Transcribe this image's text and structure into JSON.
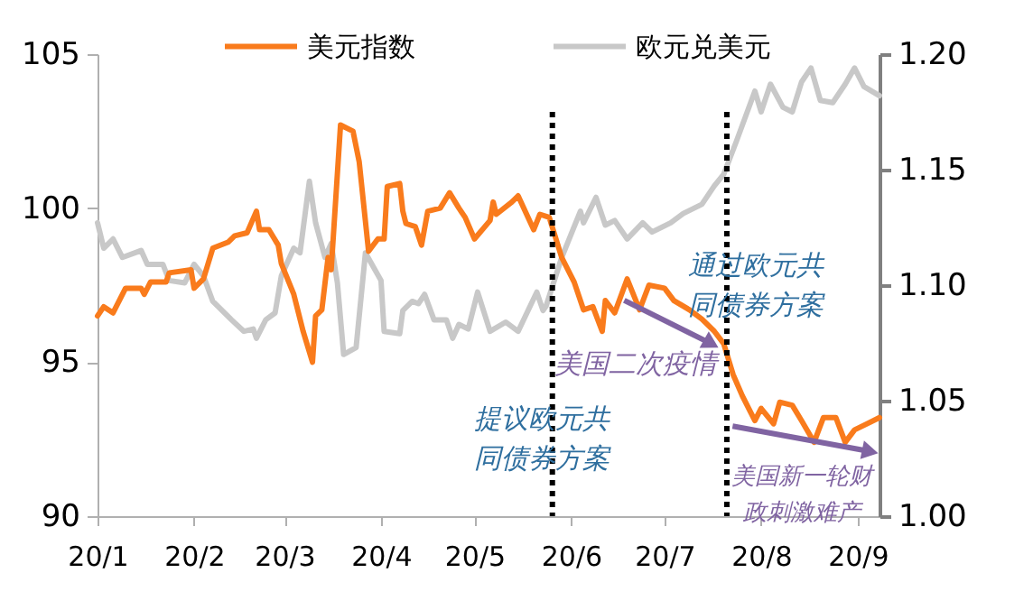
{
  "chart_data": {
    "type": "line",
    "legend": "top",
    "xlim": [
      "--01-01",
      "--09-08"
    ],
    "xticks": [
      {
        "value": "--01-01",
        "label": "20/1"
      },
      {
        "value": "--02-01",
        "label": "20/2"
      },
      {
        "value": "--03-01",
        "label": "20/3"
      },
      {
        "value": "--04-01",
        "label": "20/4"
      },
      {
        "value": "--05-01",
        "label": "20/5"
      },
      {
        "value": "--06-01",
        "label": "20/6"
      },
      {
        "value": "--07-01",
        "label": "20/7"
      },
      {
        "value": "--08-01",
        "label": "20/8"
      },
      {
        "value": "--09-01",
        "label": "20/9"
      }
    ],
    "ylim": [
      90,
      105
    ],
    "yticks": [
      90,
      95,
      100,
      105
    ],
    "y2lim": [
      1.0,
      1.2
    ],
    "y2ticks": [
      {
        "value": 1.0,
        "label": "1.00"
      },
      1.05,
      {
        "value": 1.1,
        "label": "1.10"
      },
      1.15,
      {
        "value": 1.2,
        "label": "1.20"
      }
    ],
    "series": [
      {
        "name": "美元指数",
        "color": "#f97b1c",
        "x": [
          "--01-01",
          "--01-03",
          "--01-06",
          "--01-10",
          "--01-15",
          "--01-16",
          "--01-18",
          "--01-23",
          "--01-24",
          "--01-31",
          "--02-01",
          "--02-04",
          "--02-07",
          "--02-12",
          "--02-14",
          "--02-18",
          "--02-21",
          "--02-22",
          "--02-25",
          "--02-28",
          "--02-29",
          "--03-04",
          "--03-07",
          "--03-10",
          "--03-11",
          "--03-13",
          "--03-15",
          "--03-16",
          "--03-19",
          "--03-23",
          "--03-25",
          "--03-28",
          "--03-31",
          "--04-02",
          "--04-03",
          "--04-07",
          "--04-08",
          "--04-09",
          "--04-12",
          "--04-14",
          "--04-16",
          "--04-20",
          "--04-23",
          "--04-26",
          "--04-28",
          "--05-01",
          "--05-06",
          "--05-07",
          "--05-08",
          "--05-13",
          "--05-15",
          "--05-20",
          "--05-22",
          "--05-25",
          "--05-29",
          "--06-02",
          "--06-05",
          "--06-08",
          "--06-11",
          "--06-12",
          "--06-15",
          "--06-19",
          "--06-23",
          "--06-26",
          "--07-01",
          "--07-04",
          "--07-09",
          "--07-13",
          "--07-17",
          "--07-20",
          "--07-23",
          "--07-26",
          "--07-30",
          "--08-01",
          "--08-05",
          "--08-07",
          "--08-11",
          "--08-14",
          "--08-18",
          "--08-21",
          "--08-25",
          "--08-28",
          "--08-31",
          "--09-04",
          "--09-08"
        ],
        "values": [
          96.5,
          96.8,
          96.6,
          97.4,
          97.4,
          97.2,
          97.6,
          97.6,
          97.9,
          98.0,
          97.4,
          97.7,
          98.7,
          98.9,
          99.1,
          99.2,
          99.9,
          99.3,
          99.3,
          98.8,
          98.2,
          97.2,
          96.0,
          95.0,
          96.5,
          96.7,
          98.4,
          98.0,
          102.7,
          102.5,
          101.5,
          98.6,
          99.0,
          99.0,
          100.7,
          100.8,
          99.9,
          99.5,
          99.4,
          98.8,
          99.9,
          100.0,
          100.5,
          100.0,
          99.7,
          99.0,
          99.6,
          100.2,
          99.8,
          100.2,
          100.4,
          99.3,
          99.8,
          99.7,
          98.4,
          97.6,
          96.7,
          96.8,
          96.0,
          97.0,
          96.6,
          97.7,
          96.7,
          97.5,
          97.4,
          97.0,
          96.7,
          96.4,
          96.0,
          95.6,
          94.6,
          93.9,
          93.1,
          93.5,
          93.0,
          93.7,
          93.6,
          93.1,
          92.4,
          93.2,
          93.2,
          92.4,
          92.8,
          93.0,
          93.2
        ]
      },
      {
        "name": "欧元兑美元",
        "color": "#c8c8c8",
        "axis": "y2",
        "x": [
          "--01-01",
          "--01-03",
          "--01-06",
          "--01-09",
          "--01-15",
          "--01-17",
          "--01-22",
          "--01-24",
          "--01-29",
          "--02-01",
          "--02-04",
          "--02-07",
          "--02-13",
          "--02-17",
          "--02-20",
          "--02-21",
          "--02-24",
          "--02-27",
          "--02-29",
          "--03-04",
          "--03-06",
          "--03-09",
          "--03-11",
          "--03-14",
          "--03-16",
          "--03-18",
          "--03-20",
          "--03-24",
          "--03-27",
          "--04-01",
          "--04-02",
          "--04-07",
          "--04-08",
          "--04-11",
          "--04-13",
          "--04-15",
          "--04-18",
          "--04-22",
          "--04-24",
          "--04-26",
          "--04-29",
          "--05-02",
          "--05-06",
          "--05-11",
          "--05-15",
          "--05-21",
          "--05-23",
          "--05-24",
          "--05-29",
          "--06-04",
          "--06-05",
          "--06-09",
          "--06-12",
          "--06-15",
          "--06-19",
          "--06-24",
          "--06-27",
          "--07-03",
          "--07-07",
          "--07-13",
          "--07-17",
          "--07-20",
          "--07-24",
          "--07-30",
          "--08-01",
          "--08-04",
          "--08-08",
          "--08-11",
          "--08-14",
          "--08-17",
          "--08-20",
          "--08-24",
          "--08-28",
          "--08-31",
          "--09-03",
          "--09-08"
        ],
        "values": [
          1.127,
          1.116,
          1.12,
          1.112,
          1.115,
          1.109,
          1.109,
          1.102,
          1.101,
          1.109,
          1.104,
          1.093,
          1.085,
          1.08,
          1.081,
          1.077,
          1.085,
          1.088,
          1.104,
          1.116,
          1.114,
          1.145,
          1.127,
          1.112,
          1.118,
          1.101,
          1.07,
          1.073,
          1.114,
          1.102,
          1.08,
          1.079,
          1.089,
          1.093,
          1.092,
          1.096,
          1.085,
          1.085,
          1.077,
          1.083,
          1.081,
          1.097,
          1.08,
          1.084,
          1.08,
          1.097,
          1.089,
          1.091,
          1.112,
          1.132,
          1.127,
          1.138,
          1.126,
          1.128,
          1.12,
          1.127,
          1.123,
          1.127,
          1.131,
          1.135,
          1.143,
          1.148,
          1.162,
          1.184,
          1.175,
          1.187,
          1.177,
          1.175,
          1.188,
          1.194,
          1.18,
          1.179,
          1.187,
          1.194,
          1.186,
          1.182
        ]
      }
    ],
    "ref_lines": [
      {
        "axis": "x",
        "value": "--05-26",
        "label": "提议欧元共同债券方案",
        "color": "#000000",
        "line_style": "dotted"
      },
      {
        "axis": "x",
        "value": "--07-21",
        "label": "通过欧元共同债券方案",
        "color": "#000000",
        "line_style": "dotted"
      }
    ],
    "annotations": [
      {
        "text": "美国二次疫情",
        "x": "--07-16",
        "y": 95.6
      },
      {
        "text": "美国新一轮财政刺激难产",
        "x": "--09-05",
        "y": 92.1
      }
    ]
  }
}
